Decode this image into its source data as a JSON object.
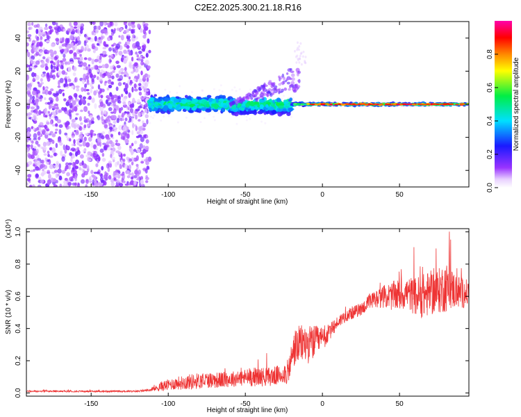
{
  "figure_title": "C2E2.2025.300.21.18.R16",
  "chart_data": [
    {
      "type": "heatmap",
      "title": "C2E2.2025.300.21.18.R16",
      "xlabel": "Height of straight line (km)",
      "ylabel": "Frequency (Hz)",
      "xlim": [
        -192,
        95
      ],
      "ylim": [
        -50,
        50
      ],
      "xticks": [
        -150,
        -100,
        -50,
        0,
        50
      ],
      "xtick_labels": [
        "-150",
        "-100",
        "-50",
        "0",
        "50"
      ],
      "yticks": [
        -40,
        -20,
        0,
        20,
        40
      ],
      "ytick_labels": [
        "-40",
        "-20",
        "0",
        "20",
        "40"
      ],
      "colorbar": {
        "label": "Normalized spectral amplitude",
        "range": [
          0,
          1
        ],
        "ticks": [
          0.0,
          0.2,
          0.4,
          0.6,
          0.8
        ],
        "tick_labels": [
          "0.0",
          "0.2",
          "0.4",
          "0.6",
          "0.8"
        ],
        "colormap": "rainbow (white-violet-blue-cyan-green-yellow-red-magenta)"
      },
      "regions": [
        {
          "x_range": [
            -192,
            -112
          ],
          "freq_range": [
            -50,
            50
          ],
          "amplitude": "0.05-0.2",
          "description": "scattered noise"
        },
        {
          "x_range": [
            -112,
            -20
          ],
          "freq_center": 0,
          "freq_halfwidth": 6,
          "amplitude": "0.2-0.45",
          "description": "broad band near 0 Hz"
        },
        {
          "x_range": [
            -60,
            -15
          ],
          "freq_center": "rising 0 to 22",
          "amplitude": "0.1-0.2",
          "description": "upward branch"
        },
        {
          "x_range": [
            -20,
            95
          ],
          "freq_center": 0,
          "freq_halfwidth": 2,
          "amplitude": "0.6-0.95",
          "description": "narrow strong line at 0 Hz"
        }
      ]
    },
    {
      "type": "line",
      "xlabel": "Height of straight line (km)",
      "ylabel": "SNR (10 * v/v)",
      "y_multiplier": "(x10⁴)",
      "xlim": [
        -192,
        95
      ],
      "ylim": [
        -0.02,
        1.02
      ],
      "xticks": [
        -150,
        -100,
        -50,
        0,
        50
      ],
      "xtick_labels": [
        "-150",
        "-100",
        "-50",
        "0",
        "50"
      ],
      "yticks": [
        0.0,
        0.2,
        0.4,
        0.6,
        0.8,
        1.0
      ],
      "ytick_labels": [
        "0.0",
        "0.2",
        "0.4",
        "0.6",
        "0.8",
        "1.0"
      ],
      "color": "#ee3333",
      "series": [
        {
          "name": "SNR",
          "x": [
            -192,
            -150,
            -120,
            -110,
            -105,
            -95,
            -85,
            -75,
            -65,
            -55,
            -45,
            -35,
            -28,
            -22,
            -20,
            -18,
            -15,
            -12,
            -8,
            -5,
            0,
            5,
            10,
            15,
            20,
            25,
            30,
            35,
            40,
            45,
            50,
            55,
            60,
            65,
            70,
            75,
            80,
            85,
            90,
            95
          ],
          "mean": [
            0.01,
            0.01,
            0.01,
            0.02,
            0.04,
            0.06,
            0.07,
            0.08,
            0.08,
            0.09,
            0.1,
            0.1,
            0.11,
            0.13,
            0.22,
            0.28,
            0.3,
            0.31,
            0.3,
            0.32,
            0.33,
            0.38,
            0.44,
            0.48,
            0.5,
            0.52,
            0.56,
            0.58,
            0.6,
            0.6,
            0.61,
            0.62,
            0.6,
            0.6,
            0.62,
            0.63,
            0.66,
            0.64,
            0.62,
            0.62
          ],
          "spread": [
            0.005,
            0.005,
            0.005,
            0.01,
            0.03,
            0.04,
            0.05,
            0.05,
            0.05,
            0.05,
            0.06,
            0.06,
            0.06,
            0.08,
            0.1,
            0.12,
            0.12,
            0.12,
            0.12,
            0.1,
            0.08,
            0.05,
            0.04,
            0.04,
            0.04,
            0.04,
            0.05,
            0.06,
            0.07,
            0.09,
            0.1,
            0.1,
            0.12,
            0.14,
            0.14,
            0.14,
            0.16,
            0.12,
            0.1,
            0.08
          ]
        }
      ]
    }
  ]
}
